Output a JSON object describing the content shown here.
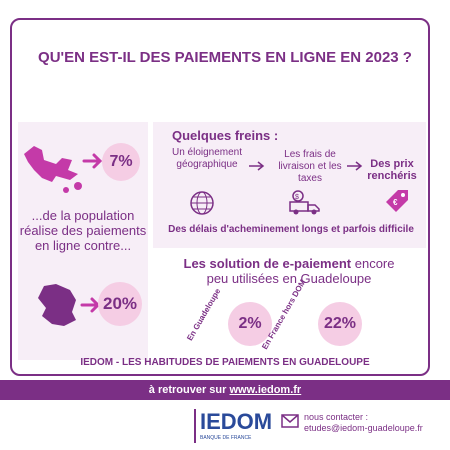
{
  "title": "QU'EN EST-IL DES PAIEMENTS EN LIGNE EN 2023 ?",
  "left": {
    "pct_guadeloupe": "7%",
    "text": "...de la population réalise des paiements en ligne contre...",
    "pct_france": "20%"
  },
  "right": {
    "freins_title": "Quelques freins :",
    "frein1": "Un éloignement géographique",
    "frein2": "Les frais de livraison et les taxes",
    "frein3": "Des prix renchéris",
    "delays": "Des délais d'acheminement longs et parfois difficile"
  },
  "solution": {
    "line1_bold": "Les solution de e-paiement",
    "line1_rest": "encore",
    "line2": "peu utilisées en Guadeloupe",
    "label_gp": "En Guadeloupe",
    "value_gp": "2%",
    "label_fr": "En France hors DOM",
    "value_fr": "22%"
  },
  "footer": {
    "heading": "IEDOM - LES HABITUDES DE PAIEMENTS EN GUADELOUPE",
    "link_prefix": "à retrouver sur",
    "link": "www.iedom.fr",
    "logo_text": "IEDOM",
    "logo_sub": "BANQUE DE FRANCE",
    "contact_label": "nous contacter :",
    "contact_email": "etudes@iedom-guadeloupe.fr"
  },
  "colors": {
    "accent": "#7b2f85",
    "badge": "#f5cde4",
    "panel": "#f7eef7"
  }
}
